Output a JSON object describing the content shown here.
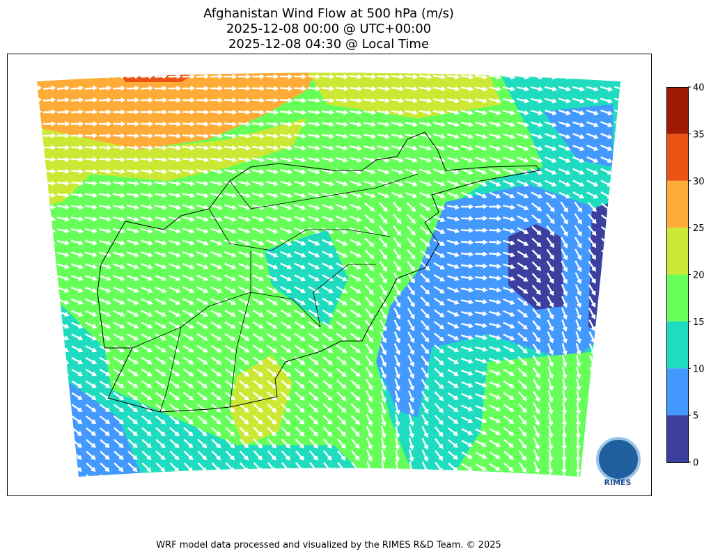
{
  "title_lines": [
    "Afghanistan Wind Flow at 500 hPa (m/s)",
    "2025-12-08 00:00 @ UTC+00:00",
    "2025-12-08 04:30 @ Local Time"
  ],
  "colorbar": {
    "ticks": [
      0,
      5,
      10,
      15,
      20,
      25,
      30,
      35,
      40
    ],
    "colors": [
      "#3d3f9e",
      "#4499ff",
      "#1fdcc0",
      "#66ff59",
      "#cde834",
      "#ffab38",
      "#ea5314",
      "#a01a02"
    ]
  },
  "logo_text": "RIMES",
  "footer": "WRF model data processed and visualized by the RIMES R&D Team. © 2025"
}
